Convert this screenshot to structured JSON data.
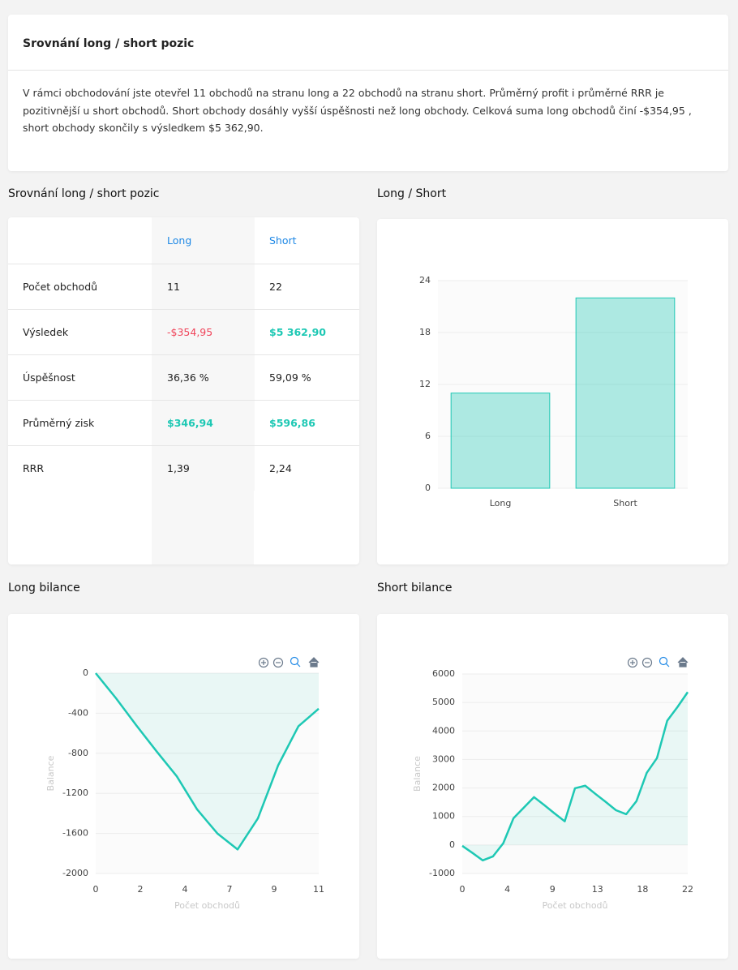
{
  "summary": {
    "title": "Srovnání long / short pozic",
    "text": "V rámci obchodování jste otevřel 11 obchodů na stranu long a 22 obchodů na stranu short. Průměrný profit i průměrné RRR je pozitivnější u short obchodů. Short obchody dosáhly vyšší úspěšnosti než long obchody. Celková suma long obchodů činí -$354,95 , short obchody skončily s výsledkem $5 362,90."
  },
  "table": {
    "title": "Srovnání long / short pozic",
    "columns": [
      "Long",
      "Short"
    ],
    "rows": [
      [
        "Počet obchodů",
        "11",
        "22"
      ],
      [
        "Výsledek",
        "-$354,95",
        "$5 362,90"
      ],
      [
        "Úspěšnost",
        "36,36  %",
        "59,09  %"
      ],
      [
        "Průměrný zisk",
        "$346,94",
        "$596,86"
      ],
      [
        "RRR",
        "1,39",
        "2,24"
      ]
    ]
  },
  "chart_data": [
    {
      "type": "bar",
      "title": "Long / Short",
      "categories": [
        "Long",
        "Short"
      ],
      "values": [
        11,
        22
      ],
      "color": "#1ec8b4",
      "ylim": [
        0,
        24
      ],
      "yticks": [
        0,
        6,
        12,
        18,
        24
      ],
      "grid": true
    },
    {
      "type": "line",
      "title": "Long bilance",
      "x_label": "Počet obchodů",
      "y_label": "Balance",
      "color": "#1ec8b4",
      "x": [
        0,
        1,
        2,
        3,
        4,
        5,
        6,
        7,
        8,
        9,
        10,
        11
      ],
      "values": [
        0,
        -250,
        -520,
        -780,
        -1030,
        -1360,
        -1600,
        -1760,
        -1450,
        -920,
        -530,
        -355
      ],
      "xlim": [
        0,
        11
      ],
      "xticks": [
        0,
        {
          "value": 2.2,
          "label": "2"
        },
        {
          "value": 4.4,
          "label": "4"
        },
        {
          "value": 6.6,
          "label": "7"
        },
        {
          "value": 8.8,
          "label": "9"
        },
        11
      ],
      "ylim": [
        -2000,
        0
      ],
      "yticks": [
        -2000,
        -1600,
        -1200,
        -800,
        -400,
        0
      ],
      "grid": true
    },
    {
      "type": "line",
      "title": "Short bilance",
      "x_label": "Počet obchodů",
      "y_label": "Balance",
      "color": "#1ec8b4",
      "x": [
        0,
        1,
        2,
        3,
        4,
        5,
        6,
        7,
        8,
        9,
        10,
        11,
        12,
        13,
        14,
        15,
        16,
        17,
        18,
        19,
        20,
        21,
        22
      ],
      "values": [
        -30,
        -280,
        -540,
        -400,
        60,
        940,
        1310,
        1680,
        1400,
        1110,
        830,
        1990,
        2080,
        1790,
        1510,
        1220,
        1080,
        1540,
        2530,
        3050,
        4360,
        4840,
        5363
      ],
      "xlim": [
        0,
        22
      ],
      "xticks": [
        0,
        {
          "value": 4.4,
          "label": "4"
        },
        {
          "value": 8.8,
          "label": "9"
        },
        {
          "value": 13.2,
          "label": "13"
        },
        {
          "value": 17.6,
          "label": "18"
        },
        22
      ],
      "ylim": [
        -1000,
        6000
      ],
      "yticks": [
        -1000,
        0,
        1000,
        2000,
        3000,
        4000,
        5000,
        6000
      ],
      "grid": true
    }
  ]
}
